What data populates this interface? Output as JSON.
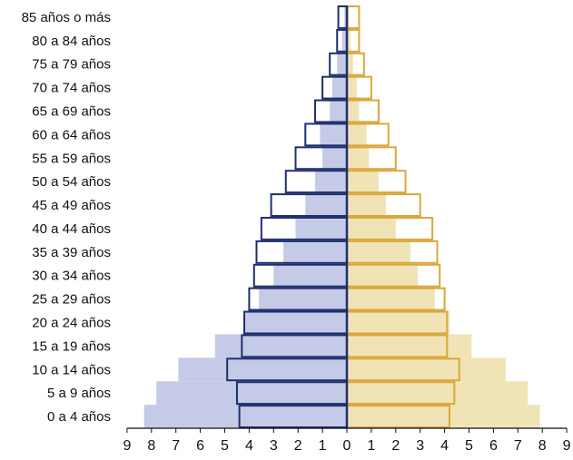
{
  "chart_data": {
    "type": "population-pyramid",
    "categories": [
      "0 a 4 años",
      "5 a 9 años",
      "10 a 14 años",
      "15 a 19 años",
      "20 a 24 años",
      "25 a 29 años",
      "30 a 34 años",
      "35 a 39 años",
      "40 a 44 años",
      "45 a 49 años",
      "50 a 54 años",
      "55 a 59 años",
      "60 a 64 años",
      "65 a 69 años",
      "70 a 74 años",
      "75 a 79 años",
      "80 a 84 años",
      "85 años o más"
    ],
    "x_ticks": [
      "9",
      "8",
      "7",
      "6",
      "5",
      "4",
      "3",
      "2",
      "1",
      "0",
      "1",
      "2",
      "3",
      "4",
      "5",
      "6",
      "7",
      "8",
      "9"
    ],
    "xlim": [
      -9,
      9
    ],
    "series": [
      {
        "side": "left",
        "style": "filled",
        "values": [
          8.3,
          7.8,
          6.9,
          5.4,
          4.2,
          3.6,
          3.0,
          2.6,
          2.1,
          1.7,
          1.3,
          1.0,
          1.1,
          0.7,
          0.6,
          0.4,
          0.2,
          0.1
        ]
      },
      {
        "side": "left",
        "style": "outline",
        "values": [
          4.4,
          4.5,
          4.9,
          4.3,
          4.2,
          4.0,
          3.8,
          3.7,
          3.5,
          3.1,
          2.5,
          2.1,
          1.7,
          1.3,
          1.0,
          0.7,
          0.4,
          0.35
        ]
      },
      {
        "side": "right",
        "style": "filled",
        "values": [
          7.9,
          7.4,
          6.5,
          5.1,
          4.2,
          3.6,
          2.9,
          2.6,
          2.0,
          1.6,
          1.3,
          0.9,
          0.8,
          0.5,
          0.4,
          0.25,
          0.15,
          0.1
        ]
      },
      {
        "side": "right",
        "style": "outline",
        "values": [
          4.2,
          4.4,
          4.6,
          4.1,
          4.1,
          4.0,
          3.8,
          3.7,
          3.5,
          3.0,
          2.4,
          2.0,
          1.7,
          1.3,
          1.0,
          0.7,
          0.5,
          0.5
        ]
      }
    ],
    "colors": {
      "left_fill": "#c5cae6",
      "left_outline": "#1f2f6e",
      "right_fill": "#f0e3b6",
      "right_outline": "#d9a83a",
      "axis": "#1f2f6e"
    },
    "grid": false
  }
}
